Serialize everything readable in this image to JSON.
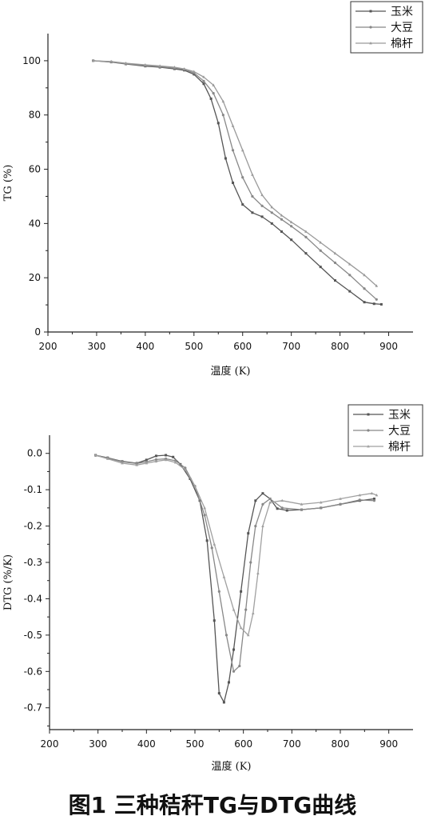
{
  "caption": "图1  三种秸秆TG与DTG曲线",
  "chart_data": [
    {
      "type": "line",
      "xlabel": "温度 (K)",
      "ylabel": "TG (%)",
      "xlim": [
        200,
        950
      ],
      "ylim": [
        0,
        110
      ],
      "xticks": [
        200,
        300,
        400,
        500,
        600,
        700,
        800,
        900
      ],
      "yticks": [
        0,
        20,
        40,
        60,
        80,
        100
      ],
      "legend": "top-right",
      "series": [
        {
          "name": "玉米",
          "color": "#555555",
          "x": [
            293,
            330,
            360,
            400,
            430,
            460,
            480,
            500,
            520,
            535,
            550,
            565,
            580,
            600,
            620,
            640,
            660,
            680,
            700,
            730,
            760,
            790,
            820,
            850,
            870,
            885
          ],
          "y": [
            100,
            99.5,
            98.8,
            98,
            97.6,
            97,
            96.5,
            95,
            91.5,
            86,
            77,
            64,
            55,
            47,
            44,
            42.5,
            40,
            37,
            34,
            29,
            24,
            19,
            15,
            11,
            10.4,
            10.2
          ]
        },
        {
          "name": "大豆",
          "color": "#888888",
          "x": [
            293,
            330,
            360,
            400,
            430,
            460,
            480,
            500,
            520,
            540,
            560,
            580,
            600,
            620,
            640,
            660,
            680,
            700,
            730,
            760,
            790,
            820,
            850,
            875
          ],
          "y": [
            100,
            99.6,
            98.9,
            98.2,
            97.8,
            97.3,
            96.8,
            95.5,
            92.5,
            88,
            80,
            67,
            57,
            50,
            46.5,
            44,
            41.5,
            39,
            35,
            30,
            25.5,
            21,
            16,
            12
          ]
        },
        {
          "name": "棉杆",
          "color": "#9a9a9a",
          "x": [
            293,
            330,
            360,
            400,
            430,
            460,
            480,
            500,
            520,
            540,
            560,
            580,
            600,
            620,
            640,
            660,
            680,
            700,
            730,
            760,
            790,
            820,
            850,
            875
          ],
          "y": [
            100,
            99.7,
            99.1,
            98.5,
            98.1,
            97.6,
            97,
            96,
            94,
            91,
            85,
            76,
            67,
            58,
            50.5,
            46,
            43,
            40.5,
            37,
            33,
            29,
            25,
            21,
            17
          ]
        }
      ]
    },
    {
      "type": "line",
      "xlabel": "温度 (K)",
      "ylabel": "DTG (%/K)",
      "xlim": [
        200,
        950
      ],
      "ylim": [
        -0.76,
        0.05
      ],
      "xticks": [
        200,
        300,
        400,
        500,
        600,
        700,
        800,
        900
      ],
      "yticks": [
        0.0,
        -0.1,
        -0.2,
        -0.3,
        -0.4,
        -0.5,
        -0.6,
        -0.7
      ],
      "legend": "top-right",
      "series": [
        {
          "name": "玉米",
          "color": "#555555",
          "x": [
            295,
            320,
            350,
            380,
            400,
            420,
            440,
            455,
            470,
            490,
            510,
            525,
            540,
            550,
            560,
            570,
            580,
            595,
            610,
            625,
            640,
            655,
            670,
            690,
            720,
            760,
            800,
            840,
            870
          ],
          "y": [
            -0.005,
            -0.012,
            -0.022,
            -0.027,
            -0.018,
            -0.007,
            -0.005,
            -0.01,
            -0.03,
            -0.07,
            -0.13,
            -0.24,
            -0.46,
            -0.66,
            -0.685,
            -0.63,
            -0.54,
            -0.38,
            -0.22,
            -0.13,
            -0.11,
            -0.125,
            -0.152,
            -0.157,
            -0.155,
            -0.15,
            -0.14,
            -0.13,
            -0.125
          ]
        },
        {
          "name": "大豆",
          "color": "#888888",
          "x": [
            295,
            320,
            350,
            380,
            400,
            420,
            440,
            460,
            480,
            500,
            520,
            535,
            550,
            565,
            580,
            592,
            605,
            615,
            625,
            640,
            655,
            680,
            720,
            760,
            800,
            840,
            870
          ],
          "y": [
            -0.006,
            -0.013,
            -0.023,
            -0.028,
            -0.023,
            -0.017,
            -0.015,
            -0.02,
            -0.04,
            -0.09,
            -0.17,
            -0.26,
            -0.38,
            -0.5,
            -0.6,
            -0.585,
            -0.43,
            -0.3,
            -0.2,
            -0.14,
            -0.125,
            -0.15,
            -0.155,
            -0.15,
            -0.14,
            -0.128,
            -0.13
          ]
        },
        {
          "name": "棉杆",
          "color": "#a0a0a0",
          "x": [
            295,
            320,
            350,
            380,
            400,
            420,
            440,
            460,
            480,
            500,
            520,
            540,
            560,
            580,
            595,
            610,
            620,
            630,
            640,
            655,
            680,
            720,
            760,
            800,
            840,
            865,
            875
          ],
          "y": [
            -0.005,
            -0.015,
            -0.027,
            -0.032,
            -0.027,
            -0.022,
            -0.018,
            -0.025,
            -0.045,
            -0.09,
            -0.15,
            -0.25,
            -0.34,
            -0.43,
            -0.48,
            -0.5,
            -0.44,
            -0.33,
            -0.2,
            -0.135,
            -0.13,
            -0.14,
            -0.135,
            -0.125,
            -0.115,
            -0.11,
            -0.115
          ]
        }
      ]
    }
  ]
}
